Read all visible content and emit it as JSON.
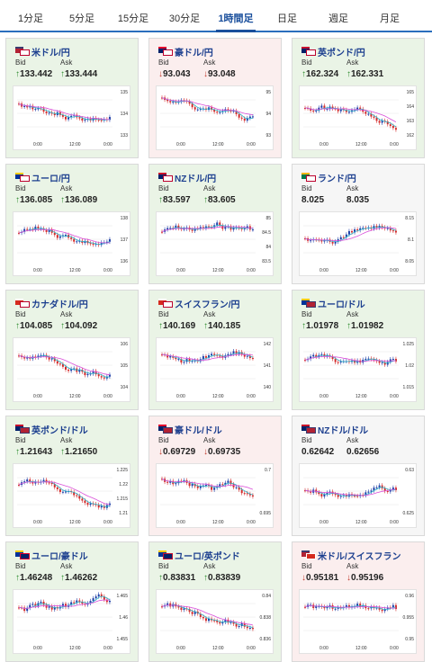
{
  "tabs": [
    {
      "label": "1分足",
      "active": false
    },
    {
      "label": "5分足",
      "active": false
    },
    {
      "label": "15分足",
      "active": false
    },
    {
      "label": "30分足",
      "active": false
    },
    {
      "label": "1時間足",
      "active": true
    },
    {
      "label": "日足",
      "active": false
    },
    {
      "label": "週足",
      "active": false
    },
    {
      "label": "月足",
      "active": false
    }
  ],
  "labels": {
    "bid": "Bid",
    "ask": "Ask"
  },
  "x_ticks": [
    "0:00",
    "12:00",
    "0:00"
  ],
  "colors": {
    "up_arrow": "#2d8a2d",
    "down_arrow": "#c0392b",
    "bull_candle": "#1f3fa8",
    "bear_candle": "#d42b2b",
    "ma_fast": "#2bb3c8",
    "ma_slow": "#d94fd9"
  },
  "pairs": [
    {
      "name": "米ドル/円",
      "trend": "up",
      "bid": "133.442",
      "ask": "133.444",
      "flags": [
        "us",
        "jp"
      ],
      "y_ticks": [
        "135",
        "134",
        "133"
      ]
    },
    {
      "name": "豪ドル/円",
      "trend": "down",
      "bid": "93.043",
      "ask": "93.048",
      "flags": [
        "au",
        "jp"
      ],
      "y_ticks": [
        "95",
        "94",
        "93"
      ]
    },
    {
      "name": "英ポンド/円",
      "trend": "up",
      "bid": "162.324",
      "ask": "162.331",
      "flags": [
        "gb",
        "jp"
      ],
      "y_ticks": [
        "165",
        "164",
        "163",
        "162"
      ]
    },
    {
      "name": "ユーロ/円",
      "trend": "up",
      "bid": "136.085",
      "ask": "136.089",
      "flags": [
        "eu",
        "jp"
      ],
      "y_ticks": [
        "138",
        "137",
        "136"
      ]
    },
    {
      "name": "NZドル/円",
      "trend": "up",
      "bid": "83.597",
      "ask": "83.605",
      "flags": [
        "nz",
        "jp"
      ],
      "y_ticks": [
        "85",
        "84.5",
        "84",
        "83.5"
      ]
    },
    {
      "name": "ランド/円",
      "trend": "flat",
      "bid": "8.025",
      "ask": "8.035",
      "flags": [
        "za",
        "jp"
      ],
      "y_ticks": [
        "8.15",
        "8.1",
        "8.05"
      ]
    },
    {
      "name": "カナダドル/円",
      "trend": "up",
      "bid": "104.085",
      "ask": "104.092",
      "flags": [
        "ca",
        "jp"
      ],
      "y_ticks": [
        "106",
        "105",
        "104"
      ]
    },
    {
      "name": "スイスフラン/円",
      "trend": "up",
      "bid": "140.169",
      "ask": "140.185",
      "flags": [
        "ch",
        "jp"
      ],
      "y_ticks": [
        "142",
        "141",
        "140"
      ]
    },
    {
      "name": "ユーロ/ドル",
      "trend": "up",
      "bid": "1.01978",
      "ask": "1.01982",
      "flags": [
        "eu",
        "us"
      ],
      "y_ticks": [
        "1.025",
        "1.02",
        "1.015"
      ]
    },
    {
      "name": "英ポンド/ドル",
      "trend": "up",
      "bid": "1.21643",
      "ask": "1.21650",
      "flags": [
        "gb",
        "us"
      ],
      "y_ticks": [
        "1.225",
        "1.22",
        "1.215",
        "1.21"
      ]
    },
    {
      "name": "豪ドル/ドル",
      "trend": "down",
      "bid": "0.69729",
      "ask": "0.69735",
      "flags": [
        "au",
        "us"
      ],
      "y_ticks": [
        "0.7",
        "0.695"
      ]
    },
    {
      "name": "NZドル/ドル",
      "trend": "flat",
      "bid": "0.62642",
      "ask": "0.62656",
      "flags": [
        "nz",
        "us"
      ],
      "y_ticks": [
        "0.63",
        "0.625"
      ]
    },
    {
      "name": "ユーロ/豪ドル",
      "trend": "up",
      "bid": "1.46248",
      "ask": "1.46262",
      "flags": [
        "eu",
        "au"
      ],
      "y_ticks": [
        "1.465",
        "1.46",
        "1.455"
      ]
    },
    {
      "name": "ユーロ/英ポンド",
      "trend": "up",
      "bid": "0.83831",
      "ask": "0.83839",
      "flags": [
        "eu",
        "gb"
      ],
      "y_ticks": [
        "0.84",
        "0.838",
        "0.836"
      ]
    },
    {
      "name": "米ドル/スイスフラン",
      "trend": "down",
      "bid": "0.95181",
      "ask": "0.95196",
      "flags": [
        "us",
        "ch"
      ],
      "y_ticks": [
        "0.96",
        "0.955",
        "0.95"
      ]
    }
  ]
}
